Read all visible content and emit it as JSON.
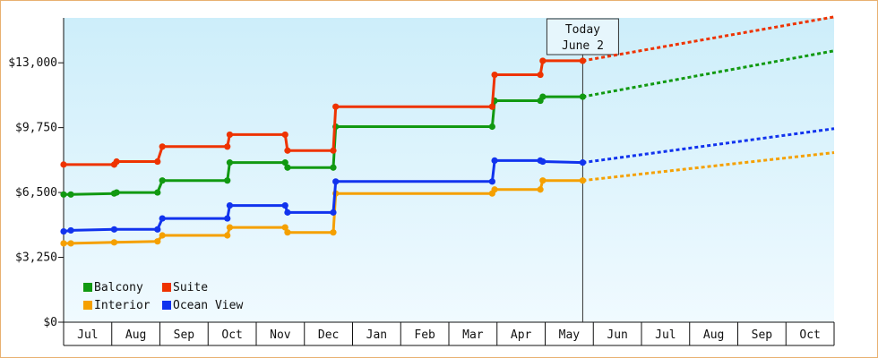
{
  "chart_data": {
    "type": "line",
    "y_ticks": [
      "$0",
      "$3,250",
      "$6,500",
      "$9,750",
      "$13,000"
    ],
    "y_tick_values": [
      0,
      3250,
      6500,
      9750,
      13000
    ],
    "ylim": [
      0,
      15250
    ],
    "months": [
      "Jul",
      "Aug",
      "Sep",
      "Oct",
      "Nov",
      "Dec",
      "Jan",
      "Feb",
      "Mar",
      "Apr",
      "May",
      "Jun",
      "Jul",
      "Aug",
      "Sep",
      "Oct"
    ],
    "x_range": [
      0,
      16
    ],
    "today": {
      "line1": "Today",
      "line2": "June 2",
      "x": 10.78
    },
    "grid": false,
    "legend_position": "bottom-left",
    "series": [
      {
        "name": "Balcony",
        "color": "#119911",
        "points": [
          [
            0.0,
            6400
          ],
          [
            0.15,
            6400
          ],
          [
            1.05,
            6450
          ],
          [
            1.1,
            6500
          ],
          [
            1.95,
            6500
          ],
          [
            2.05,
            7100
          ],
          [
            3.4,
            7100
          ],
          [
            3.45,
            8000
          ],
          [
            4.6,
            8000
          ],
          [
            4.65,
            7750
          ],
          [
            5.6,
            7750
          ],
          [
            5.65,
            9800
          ],
          [
            8.9,
            9800
          ],
          [
            8.95,
            11100
          ],
          [
            9.9,
            11100
          ],
          [
            9.95,
            11300
          ],
          [
            10.78,
            11300
          ]
        ],
        "forecast": [
          [
            10.78,
            11300
          ],
          [
            16.0,
            13600
          ]
        ]
      },
      {
        "name": "Suite",
        "color": "#ee3300",
        "points": [
          [
            0.0,
            7900
          ],
          [
            1.05,
            7900
          ],
          [
            1.1,
            8050
          ],
          [
            1.95,
            8050
          ],
          [
            2.05,
            8800
          ],
          [
            3.4,
            8800
          ],
          [
            3.45,
            9400
          ],
          [
            4.6,
            9400
          ],
          [
            4.65,
            8600
          ],
          [
            5.6,
            8600
          ],
          [
            5.65,
            10800
          ],
          [
            8.9,
            10800
          ],
          [
            8.95,
            12400
          ],
          [
            9.9,
            12400
          ],
          [
            9.95,
            13100
          ],
          [
            10.78,
            13100
          ]
        ],
        "forecast": [
          [
            10.78,
            13100
          ],
          [
            16.0,
            15300
          ]
        ]
      },
      {
        "name": "Interior",
        "color": "#f5a000",
        "points": [
          [
            0.0,
            3950
          ],
          [
            0.15,
            3950
          ],
          [
            1.05,
            4000
          ],
          [
            1.95,
            4050
          ],
          [
            2.05,
            4350
          ],
          [
            3.4,
            4350
          ],
          [
            3.45,
            4750
          ],
          [
            4.6,
            4750
          ],
          [
            4.65,
            4500
          ],
          [
            5.6,
            4500
          ],
          [
            5.65,
            6450
          ],
          [
            8.9,
            6450
          ],
          [
            8.95,
            6650
          ],
          [
            9.9,
            6650
          ],
          [
            9.95,
            7100
          ],
          [
            10.78,
            7100
          ]
        ],
        "forecast": [
          [
            10.78,
            7100
          ],
          [
            16.0,
            8500
          ]
        ]
      },
      {
        "name": "Ocean View",
        "color": "#1133ee",
        "points": [
          [
            0.0,
            4550
          ],
          [
            0.15,
            4600
          ],
          [
            1.05,
            4650
          ],
          [
            1.95,
            4650
          ],
          [
            2.05,
            5200
          ],
          [
            3.4,
            5200
          ],
          [
            3.45,
            5850
          ],
          [
            4.6,
            5850
          ],
          [
            4.65,
            5500
          ],
          [
            5.6,
            5500
          ],
          [
            5.65,
            7050
          ],
          [
            8.9,
            7050
          ],
          [
            8.95,
            8100
          ],
          [
            9.9,
            8100
          ],
          [
            9.95,
            8050
          ],
          [
            10.78,
            8000
          ]
        ],
        "forecast": [
          [
            10.78,
            8000
          ],
          [
            16.0,
            9700
          ]
        ]
      }
    ],
    "legend": [
      {
        "name": "Balcony",
        "color": "#119911"
      },
      {
        "name": "Suite",
        "color": "#ee3300"
      },
      {
        "name": "Interior",
        "color": "#f5a000"
      },
      {
        "name": "Ocean View",
        "color": "#1133ee"
      }
    ],
    "background_top": "#cdeefa",
    "background_bottom": "#f0faff"
  }
}
